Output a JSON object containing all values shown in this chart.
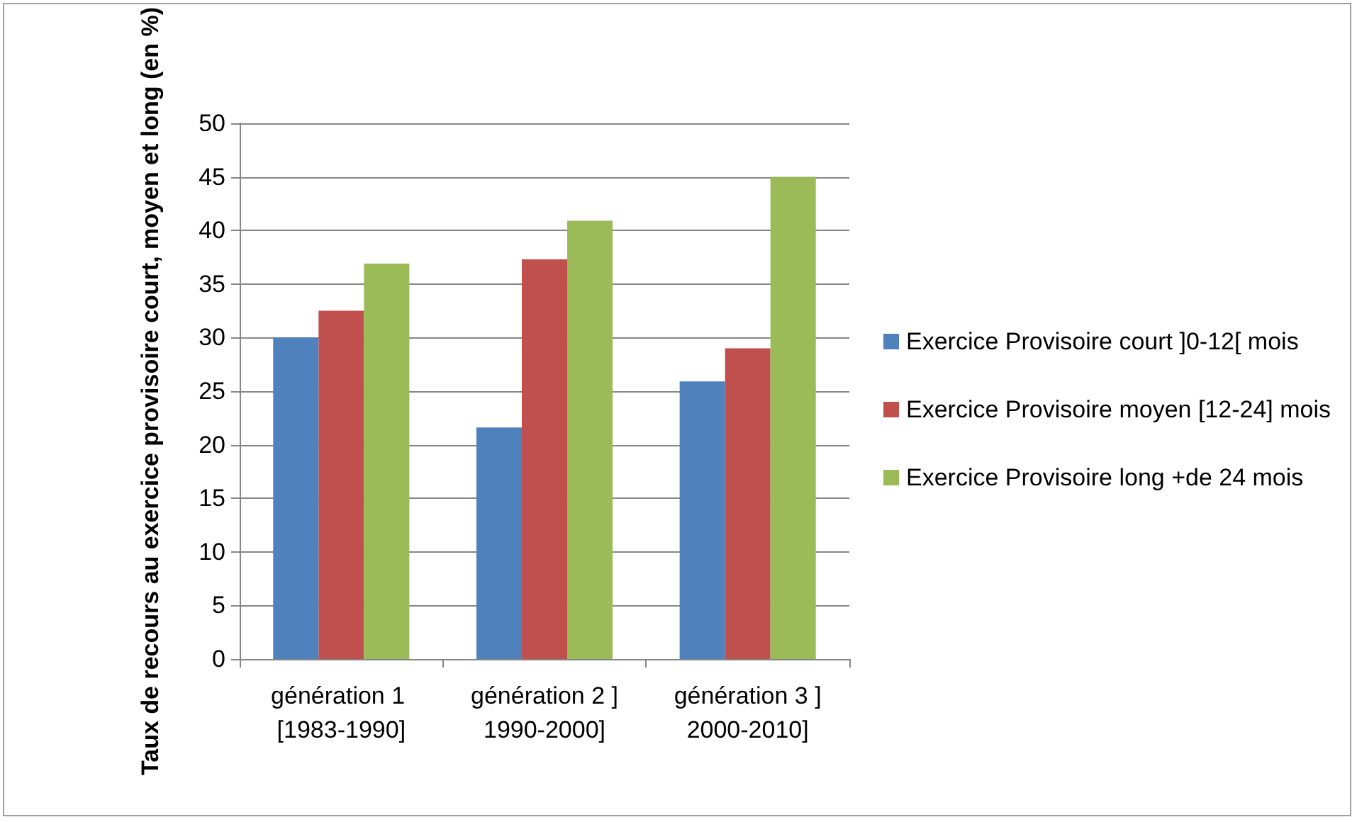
{
  "chart_data": {
    "type": "bar",
    "ylabel": "Taux de recours au exercice provisoire court, moyen et long (en %)",
    "categories": [
      "génération 1 [1983-1990]",
      "génération 2 ]1990-2000]",
      "génération 3 ]2000-2010]"
    ],
    "series": [
      {
        "name": "Exercice Provisoire court ]0-12[ mois",
        "color": "#4f81bd",
        "values": [
          30,
          21.6,
          25.9
        ]
      },
      {
        "name": "Exercice Provisoire moyen [12-24] mois",
        "color": "#c0504d",
        "values": [
          32.5,
          37.3,
          29.0
        ]
      },
      {
        "name": "Exercice Provisoire long +de 24 mois",
        "color": "#9bbb59",
        "values": [
          36.9,
          40.9,
          45
        ]
      }
    ],
    "ylim": [
      0,
      50
    ],
    "yticks": [
      0,
      5,
      10,
      15,
      20,
      25,
      30,
      35,
      40,
      45,
      50
    ],
    "grid": "y",
    "legend": "right"
  }
}
